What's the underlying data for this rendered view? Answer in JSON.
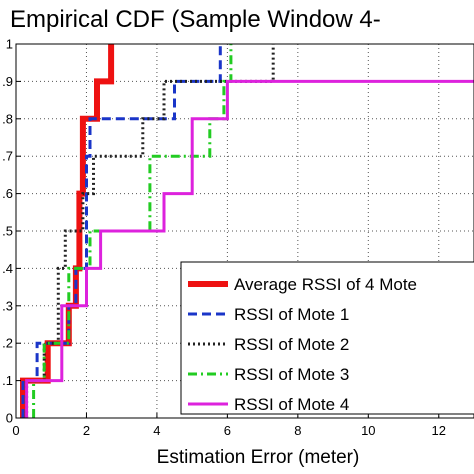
{
  "chart_data": {
    "type": "line",
    "title": "Empirical CDF (Sample Window 4-",
    "xlabel": "Estimation Error (meter)",
    "ylabel": "",
    "xlim": [
      0,
      13
    ],
    "ylim": [
      0,
      1
    ],
    "x_ticks": [
      "0",
      "2",
      "4",
      "6",
      "8",
      "10",
      "12"
    ],
    "x_tick_values": [
      0,
      2,
      4,
      6,
      8,
      10,
      12
    ],
    "y_ticks": [
      "0",
      ".1",
      ".2",
      ".3",
      ".4",
      ".5",
      ".6",
      ".7",
      ".8",
      ".9",
      "1"
    ],
    "y_tick_values": [
      0,
      0.1,
      0.2,
      0.3,
      0.4,
      0.5,
      0.6,
      0.7,
      0.8,
      0.9,
      1
    ],
    "grid": true,
    "legend_position": "bottom-right",
    "series": [
      {
        "name": "Average RSSI of 4 Mote",
        "color": "#ee1111",
        "dash": "solid",
        "x": [
          0.2,
          0.2,
          0.9,
          0.9,
          1.5,
          1.5,
          1.7,
          1.7,
          1.8,
          1.8,
          1.9,
          1.9,
          2.0,
          2.0,
          2.3,
          2.3,
          2.7,
          2.7
        ],
        "y": [
          0.0,
          0.1,
          0.1,
          0.2,
          0.2,
          0.3,
          0.3,
          0.4,
          0.4,
          0.6,
          0.6,
          0.8,
          0.8,
          0.8,
          0.8,
          0.9,
          0.9,
          1.0
        ]
      },
      {
        "name": "RSSI of Mote 1",
        "color": "#1a35c8",
        "dash": "dashed",
        "x": [
          0.2,
          0.2,
          0.6,
          0.6,
          1.5,
          1.5,
          1.7,
          1.7,
          2.0,
          2.0,
          2.1,
          2.1,
          4.5,
          4.5,
          5.7,
          5.7,
          5.8,
          5.8
        ],
        "y": [
          0.0,
          0.1,
          0.1,
          0.2,
          0.2,
          0.3,
          0.3,
          0.4,
          0.4,
          0.7,
          0.7,
          0.8,
          0.8,
          0.9,
          0.9,
          0.9,
          0.9,
          1.0
        ]
      },
      {
        "name": "RSSI of Mote 2",
        "color": "#222222",
        "dash": "dotted",
        "x": [
          0.3,
          0.3,
          0.8,
          0.8,
          1.2,
          1.2,
          1.4,
          1.4,
          1.9,
          1.9,
          2.2,
          2.2,
          3.6,
          3.6,
          4.2,
          4.2,
          6.3,
          6.3,
          7.3,
          7.3
        ],
        "y": [
          0.0,
          0.1,
          0.1,
          0.2,
          0.2,
          0.4,
          0.4,
          0.5,
          0.5,
          0.6,
          0.6,
          0.7,
          0.7,
          0.8,
          0.8,
          0.9,
          0.9,
          0.9,
          0.9,
          1.0
        ]
      },
      {
        "name": "RSSI of Mote 3",
        "color": "#22cc22",
        "dash": "dashdot",
        "x": [
          0.5,
          0.5,
          0.8,
          0.8,
          1.5,
          1.5,
          2.1,
          2.1,
          3.8,
          3.8,
          5.5,
          5.5,
          5.9,
          5.9,
          6.1,
          6.1
        ],
        "y": [
          0.0,
          0.1,
          0.1,
          0.2,
          0.2,
          0.4,
          0.4,
          0.5,
          0.5,
          0.7,
          0.7,
          0.8,
          0.8,
          0.9,
          0.9,
          1.0
        ]
      },
      {
        "name": "RSSI of Mote 4",
        "color": "#dd22dd",
        "dash": "solid",
        "x": [
          0.3,
          0.3,
          1.3,
          1.3,
          2.0,
          2.0,
          2.4,
          2.4,
          4.2,
          4.2,
          5.0,
          5.0,
          6.0,
          6.0,
          8.8,
          8.8,
          13.0
        ],
        "y": [
          0.0,
          0.1,
          0.1,
          0.3,
          0.3,
          0.4,
          0.4,
          0.5,
          0.5,
          0.6,
          0.6,
          0.8,
          0.8,
          0.9,
          0.9,
          0.9,
          0.9
        ]
      }
    ]
  }
}
